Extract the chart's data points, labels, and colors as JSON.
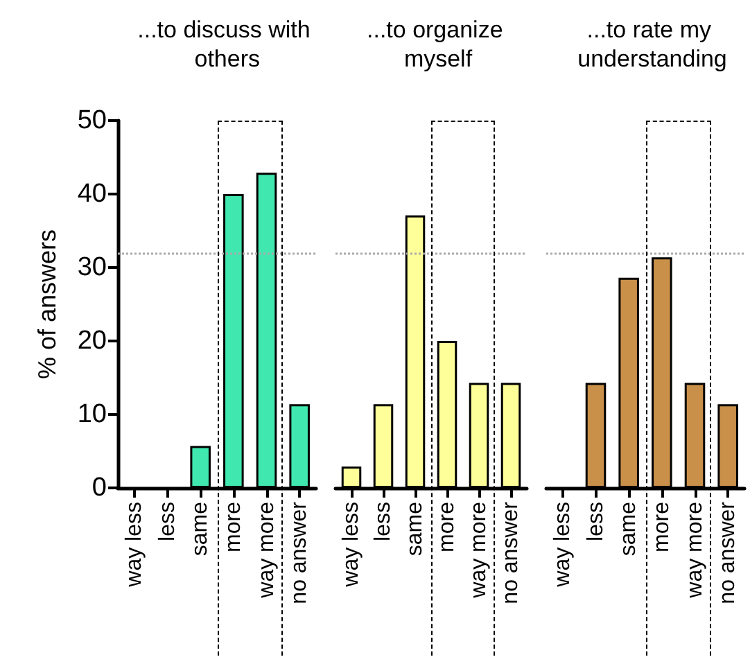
{
  "chart_data": [
    {
      "type": "bar",
      "title": "...to discuss with others",
      "ylabel": "% of answers",
      "categories": [
        "way less",
        "less",
        "same",
        "more",
        "way more",
        "no answer"
      ],
      "values": [
        0,
        0,
        5.7,
        40,
        42.9,
        11.4
      ],
      "color": "#40e8b0",
      "ylim": [
        0,
        50
      ],
      "yticks": [
        0,
        10,
        20,
        30,
        40,
        50
      ],
      "grid": false,
      "ref_lines": [
        {
          "axis": "y",
          "value": 32,
          "color": "#aaaaaa",
          "line_style": "dotted"
        }
      ]
    },
    {
      "type": "bar",
      "title": "...to organize myself",
      "categories": [
        "way less",
        "less",
        "same",
        "more",
        "way more",
        "no answer"
      ],
      "values": [
        2.9,
        11.4,
        37.1,
        20,
        14.3,
        14.3
      ],
      "color": "#ffff99",
      "ylim": [
        0,
        50
      ],
      "yticks": [
        0,
        10,
        20,
        30,
        40,
        50
      ],
      "tick_labels": "x",
      "grid": false,
      "ref_lines": [
        {
          "axis": "y",
          "value": 32,
          "color": "#aaaaaa",
          "line_style": "dotted"
        }
      ]
    },
    {
      "type": "bar",
      "title": "...to rate my understanding",
      "categories": [
        "way less",
        "less",
        "same",
        "more",
        "way more",
        "no answer"
      ],
      "values": [
        0,
        14.3,
        28.6,
        31.4,
        14.3,
        11.4
      ],
      "color": "#c9904a",
      "ylim": [
        0,
        50
      ],
      "yticks": [
        0,
        10,
        20,
        30,
        40,
        50
      ],
      "tick_labels": "x",
      "grid": false,
      "ref_lines": [
        {
          "axis": "y",
          "value": 32,
          "color": "#aaaaaa",
          "line_style": "dotted"
        }
      ]
    }
  ]
}
